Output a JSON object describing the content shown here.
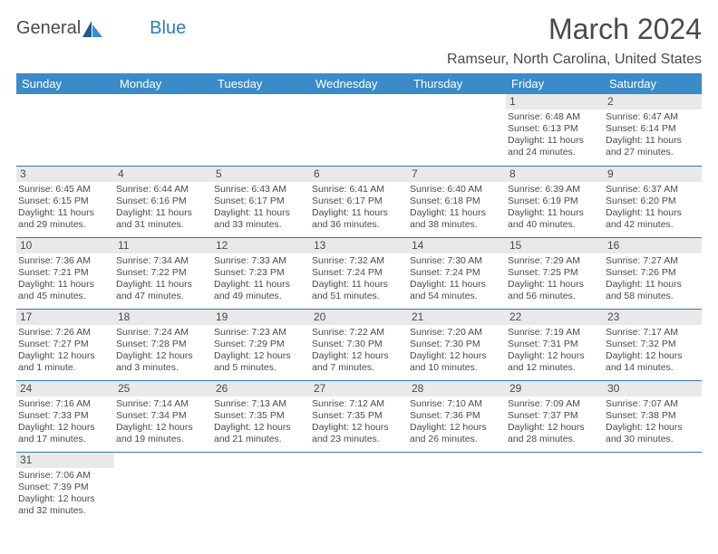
{
  "logo": {
    "text1": "General",
    "text2": "Blue"
  },
  "title": "March 2024",
  "location": "Ramseur, North Carolina, United States",
  "colors": {
    "header_bg": "#3b8bc8",
    "header_text": "#ffffff",
    "daynum_bg": "#e9e9e9",
    "border": "#2f7ab8",
    "text": "#4a4a4a"
  },
  "day_names": [
    "Sunday",
    "Monday",
    "Tuesday",
    "Wednesday",
    "Thursday",
    "Friday",
    "Saturday"
  ],
  "weeks": [
    [
      null,
      null,
      null,
      null,
      null,
      {
        "num": "1",
        "sunrise": "Sunrise: 6:48 AM",
        "sunset": "Sunset: 6:13 PM",
        "daylight": "Daylight: 11 hours and 24 minutes."
      },
      {
        "num": "2",
        "sunrise": "Sunrise: 6:47 AM",
        "sunset": "Sunset: 6:14 PM",
        "daylight": "Daylight: 11 hours and 27 minutes."
      }
    ],
    [
      {
        "num": "3",
        "sunrise": "Sunrise: 6:45 AM",
        "sunset": "Sunset: 6:15 PM",
        "daylight": "Daylight: 11 hours and 29 minutes."
      },
      {
        "num": "4",
        "sunrise": "Sunrise: 6:44 AM",
        "sunset": "Sunset: 6:16 PM",
        "daylight": "Daylight: 11 hours and 31 minutes."
      },
      {
        "num": "5",
        "sunrise": "Sunrise: 6:43 AM",
        "sunset": "Sunset: 6:17 PM",
        "daylight": "Daylight: 11 hours and 33 minutes."
      },
      {
        "num": "6",
        "sunrise": "Sunrise: 6:41 AM",
        "sunset": "Sunset: 6:17 PM",
        "daylight": "Daylight: 11 hours and 36 minutes."
      },
      {
        "num": "7",
        "sunrise": "Sunrise: 6:40 AM",
        "sunset": "Sunset: 6:18 PM",
        "daylight": "Daylight: 11 hours and 38 minutes."
      },
      {
        "num": "8",
        "sunrise": "Sunrise: 6:39 AM",
        "sunset": "Sunset: 6:19 PM",
        "daylight": "Daylight: 11 hours and 40 minutes."
      },
      {
        "num": "9",
        "sunrise": "Sunrise: 6:37 AM",
        "sunset": "Sunset: 6:20 PM",
        "daylight": "Daylight: 11 hours and 42 minutes."
      }
    ],
    [
      {
        "num": "10",
        "sunrise": "Sunrise: 7:36 AM",
        "sunset": "Sunset: 7:21 PM",
        "daylight": "Daylight: 11 hours and 45 minutes."
      },
      {
        "num": "11",
        "sunrise": "Sunrise: 7:34 AM",
        "sunset": "Sunset: 7:22 PM",
        "daylight": "Daylight: 11 hours and 47 minutes."
      },
      {
        "num": "12",
        "sunrise": "Sunrise: 7:33 AM",
        "sunset": "Sunset: 7:23 PM",
        "daylight": "Daylight: 11 hours and 49 minutes."
      },
      {
        "num": "13",
        "sunrise": "Sunrise: 7:32 AM",
        "sunset": "Sunset: 7:24 PM",
        "daylight": "Daylight: 11 hours and 51 minutes."
      },
      {
        "num": "14",
        "sunrise": "Sunrise: 7:30 AM",
        "sunset": "Sunset: 7:24 PM",
        "daylight": "Daylight: 11 hours and 54 minutes."
      },
      {
        "num": "15",
        "sunrise": "Sunrise: 7:29 AM",
        "sunset": "Sunset: 7:25 PM",
        "daylight": "Daylight: 11 hours and 56 minutes."
      },
      {
        "num": "16",
        "sunrise": "Sunrise: 7:27 AM",
        "sunset": "Sunset: 7:26 PM",
        "daylight": "Daylight: 11 hours and 58 minutes."
      }
    ],
    [
      {
        "num": "17",
        "sunrise": "Sunrise: 7:26 AM",
        "sunset": "Sunset: 7:27 PM",
        "daylight": "Daylight: 12 hours and 1 minute."
      },
      {
        "num": "18",
        "sunrise": "Sunrise: 7:24 AM",
        "sunset": "Sunset: 7:28 PM",
        "daylight": "Daylight: 12 hours and 3 minutes."
      },
      {
        "num": "19",
        "sunrise": "Sunrise: 7:23 AM",
        "sunset": "Sunset: 7:29 PM",
        "daylight": "Daylight: 12 hours and 5 minutes."
      },
      {
        "num": "20",
        "sunrise": "Sunrise: 7:22 AM",
        "sunset": "Sunset: 7:30 PM",
        "daylight": "Daylight: 12 hours and 7 minutes."
      },
      {
        "num": "21",
        "sunrise": "Sunrise: 7:20 AM",
        "sunset": "Sunset: 7:30 PM",
        "daylight": "Daylight: 12 hours and 10 minutes."
      },
      {
        "num": "22",
        "sunrise": "Sunrise: 7:19 AM",
        "sunset": "Sunset: 7:31 PM",
        "daylight": "Daylight: 12 hours and 12 minutes."
      },
      {
        "num": "23",
        "sunrise": "Sunrise: 7:17 AM",
        "sunset": "Sunset: 7:32 PM",
        "daylight": "Daylight: 12 hours and 14 minutes."
      }
    ],
    [
      {
        "num": "24",
        "sunrise": "Sunrise: 7:16 AM",
        "sunset": "Sunset: 7:33 PM",
        "daylight": "Daylight: 12 hours and 17 minutes."
      },
      {
        "num": "25",
        "sunrise": "Sunrise: 7:14 AM",
        "sunset": "Sunset: 7:34 PM",
        "daylight": "Daylight: 12 hours and 19 minutes."
      },
      {
        "num": "26",
        "sunrise": "Sunrise: 7:13 AM",
        "sunset": "Sunset: 7:35 PM",
        "daylight": "Daylight: 12 hours and 21 minutes."
      },
      {
        "num": "27",
        "sunrise": "Sunrise: 7:12 AM",
        "sunset": "Sunset: 7:35 PM",
        "daylight": "Daylight: 12 hours and 23 minutes."
      },
      {
        "num": "28",
        "sunrise": "Sunrise: 7:10 AM",
        "sunset": "Sunset: 7:36 PM",
        "daylight": "Daylight: 12 hours and 26 minutes."
      },
      {
        "num": "29",
        "sunrise": "Sunrise: 7:09 AM",
        "sunset": "Sunset: 7:37 PM",
        "daylight": "Daylight: 12 hours and 28 minutes."
      },
      {
        "num": "30",
        "sunrise": "Sunrise: 7:07 AM",
        "sunset": "Sunset: 7:38 PM",
        "daylight": "Daylight: 12 hours and 30 minutes."
      }
    ],
    [
      {
        "num": "31",
        "sunrise": "Sunrise: 7:06 AM",
        "sunset": "Sunset: 7:39 PM",
        "daylight": "Daylight: 12 hours and 32 minutes."
      },
      null,
      null,
      null,
      null,
      null,
      null
    ]
  ]
}
